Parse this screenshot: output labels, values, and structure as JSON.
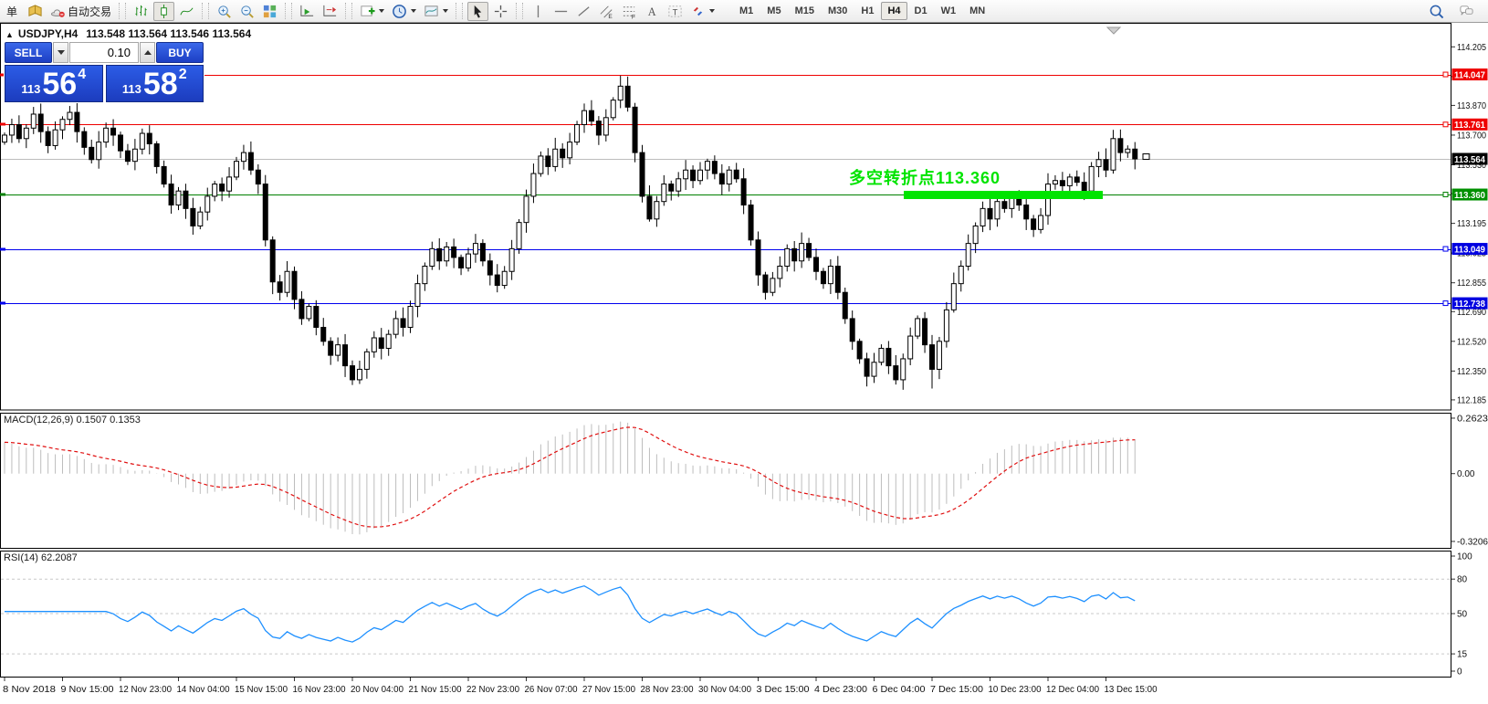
{
  "toolbar": {
    "items": [
      {
        "name": "new-order",
        "label": "单"
      },
      {
        "name": "charts-profile",
        "icon": "book"
      },
      {
        "name": "auto-trading",
        "icon": "hat",
        "label": "自动交易"
      },
      {
        "sep": true
      },
      {
        "name": "bar-chart",
        "icon": "bars"
      },
      {
        "name": "candlestick-chart",
        "icon": "candle",
        "active": true
      },
      {
        "name": "line-chart",
        "icon": "curve"
      },
      {
        "sep": true
      },
      {
        "name": "zoom-in",
        "icon": "zoomin"
      },
      {
        "name": "zoom-out",
        "icon": "zoomout"
      },
      {
        "name": "tile-windows",
        "icon": "grid"
      },
      {
        "sep": true
      },
      {
        "name": "auto-scroll",
        "icon": "autoscroll"
      },
      {
        "name": "chart-shift",
        "icon": "shift"
      },
      {
        "sep": true
      },
      {
        "name": "indicators",
        "icon": "addind",
        "caret": true
      },
      {
        "name": "periods",
        "icon": "clock",
        "caret": true
      },
      {
        "name": "templates",
        "icon": "tmpl",
        "caret": true
      },
      {
        "sep": true
      },
      {
        "name": "cursor",
        "icon": "cursor",
        "active": true
      },
      {
        "name": "crosshair",
        "icon": "cross"
      },
      {
        "sep": true
      },
      {
        "name": "vertical-line",
        "icon": "vline"
      },
      {
        "name": "horizontal-line",
        "icon": "hline"
      },
      {
        "name": "trend-line",
        "icon": "trend"
      },
      {
        "name": "equidistant-channel",
        "icon": "channel"
      },
      {
        "name": "fibonacci",
        "icon": "fib"
      },
      {
        "name": "text",
        "icon": "textA"
      },
      {
        "name": "text-label",
        "icon": "textT"
      },
      {
        "name": "arrows",
        "icon": "arrows",
        "caret": true
      }
    ],
    "timeframes": [
      {
        "label": "M1"
      },
      {
        "label": "M5"
      },
      {
        "label": "M15"
      },
      {
        "label": "M30"
      },
      {
        "label": "H1"
      },
      {
        "label": "H4",
        "active": true
      },
      {
        "label": "D1"
      },
      {
        "label": "W1"
      },
      {
        "label": "MN"
      }
    ],
    "right_icons": [
      {
        "name": "search",
        "icon": "search"
      },
      {
        "name": "chat",
        "icon": "chat"
      }
    ]
  },
  "symbol_bar": {
    "collapse_icon": "▲",
    "symbol": "USDJPY,H4",
    "ohlc": "113.548 113.564 113.546 113.564"
  },
  "trade_panel": {
    "sell_label": "SELL",
    "buy_label": "BUY",
    "volume": "0.10",
    "sell": {
      "prefix": "113",
      "big": "56",
      "sup": "4"
    },
    "buy": {
      "prefix": "113",
      "big": "58",
      "sup": "2"
    }
  },
  "annotation": {
    "text": "多空转折点113.360",
    "color": "#00E400",
    "bar_color": "#00E400"
  },
  "chart_data": {
    "type": "candlestick",
    "symbol": "USDJPY",
    "timeframe": "H4",
    "series": {
      "open_first": 113.66,
      "closes": [
        113.7,
        113.76,
        113.68,
        113.74,
        113.82,
        113.72,
        113.64,
        113.73,
        113.79,
        113.83,
        113.72,
        113.63,
        113.56,
        113.66,
        113.74,
        113.7,
        113.61,
        113.55,
        113.62,
        113.71,
        113.65,
        113.52,
        113.42,
        113.3,
        113.38,
        113.28,
        113.18,
        113.26,
        113.35,
        113.42,
        113.38,
        113.46,
        113.55,
        113.6,
        113.5,
        113.42,
        113.1,
        112.86,
        112.8,
        112.92,
        112.76,
        112.65,
        112.72,
        112.6,
        112.52,
        112.44,
        112.5,
        112.38,
        112.3,
        112.36,
        112.46,
        112.54,
        112.48,
        112.56,
        112.65,
        112.6,
        112.72,
        112.85,
        112.95,
        113.05,
        112.98,
        113.06,
        113.0,
        112.94,
        113.02,
        113.08,
        112.98,
        112.9,
        112.84,
        112.92,
        113.05,
        113.2,
        113.35,
        113.48,
        113.58,
        113.52,
        113.62,
        113.57,
        113.66,
        113.76,
        113.84,
        113.78,
        113.7,
        113.8,
        113.9,
        113.98,
        113.86,
        113.6,
        113.35,
        113.22,
        113.32,
        113.42,
        113.38,
        113.45,
        113.5,
        113.44,
        113.5,
        113.55,
        113.48,
        113.42,
        113.5,
        113.45,
        113.3,
        113.1,
        112.9,
        112.8,
        112.88,
        112.95,
        113.05,
        112.98,
        113.08,
        113.0,
        112.92,
        112.85,
        112.95,
        112.8,
        112.65,
        112.52,
        112.42,
        112.32,
        112.4,
        112.48,
        112.38,
        112.3,
        112.42,
        112.55,
        112.65,
        112.5,
        112.36,
        112.52,
        112.7,
        112.85,
        112.95,
        113.08,
        113.18,
        113.28,
        113.22,
        113.32,
        113.28,
        113.35,
        113.3,
        113.22,
        113.16,
        113.24,
        113.42,
        113.44,
        113.41,
        113.46,
        113.43,
        113.38,
        113.52,
        113.56,
        113.5,
        113.68,
        113.6,
        113.62,
        113.564
      ],
      "wick_overrides": {
        "26": {
          "l": 113.13
        },
        "37": {
          "l": 112.79
        },
        "48": {
          "l": 112.27
        },
        "85": {
          "h": 114.04
        },
        "116": {
          "l": 112.62
        },
        "128": {
          "l": 112.25
        },
        "153": {
          "h": 113.73
        }
      }
    },
    "levels": [
      {
        "price": 114.047,
        "color": "#EE0000",
        "handles": true
      },
      {
        "price": 113.761,
        "color": "#EE0000",
        "handles": true
      },
      {
        "price": 113.564,
        "color": "#BDBDBD",
        "handles": false
      },
      {
        "price": 113.36,
        "color": "#007F00",
        "handles": true
      },
      {
        "price": 113.049,
        "color": "#0000EE",
        "handles": true
      },
      {
        "price": 112.738,
        "color": "#0000EE",
        "handles": true
      }
    ],
    "price_axis": {
      "ticks": [
        "114.205",
        "114.035",
        "113.870",
        "113.700",
        "113.530",
        "113.365",
        "113.195",
        "113.025",
        "112.855",
        "112.690",
        "112.520",
        "112.350",
        "112.185"
      ],
      "badges": [
        {
          "text": "114.047",
          "color": "#EE0000"
        },
        {
          "text": "113.761",
          "color": "#EE0000"
        },
        {
          "text": "113.564",
          "color": "#000000"
        },
        {
          "text": "113.360",
          "color": "#009000"
        },
        {
          "text": "113.049",
          "color": "#0000E0"
        },
        {
          "text": "112.738",
          "color": "#0000E0"
        }
      ]
    },
    "macd": {
      "label": "MACD(12,26,9) 0.1507 0.1353",
      "params": [
        12,
        26,
        9
      ],
      "current_macd": "0.1507",
      "current_signal": "0.1353",
      "scale": [
        {
          "label": "0.2623",
          "v": 0.2623
        },
        {
          "label": "0.00",
          "v": 0
        },
        {
          "label": "-0.3206",
          "v": -0.3206
        }
      ],
      "hist_color": "#BDBDBD",
      "signal_color": "#E01010"
    },
    "rsi": {
      "label": "RSI(14) 62.2087",
      "current": "62.2087",
      "levels": [
        100,
        80,
        50,
        15,
        0
      ],
      "dashed": [
        80,
        50,
        15
      ],
      "line_color": "#1E90FF"
    },
    "time_axis": {
      "labels": [
        "8 Nov 2018",
        "9 Nov 15:00",
        "12 Nov 23:00",
        "14 Nov 04:00",
        "15 Nov 15:00",
        "16 Nov 23:00",
        "20 Nov 04:00",
        "21 Nov 15:00",
        "22 Nov 23:00",
        "26 Nov 07:00",
        "27 Nov 15:00",
        "28 Nov 23:00",
        "30 Nov 04:00",
        "3 Dec 15:00",
        "4 Dec 23:00",
        "6 Dec 04:00",
        "7 Dec 15:00",
        "10 Dec 23:00",
        "12 Dec 04:00",
        "13 Dec 15:00"
      ]
    },
    "highlight_bar": {
      "price": 113.36,
      "x_start": 990,
      "x_end": 1208
    }
  }
}
